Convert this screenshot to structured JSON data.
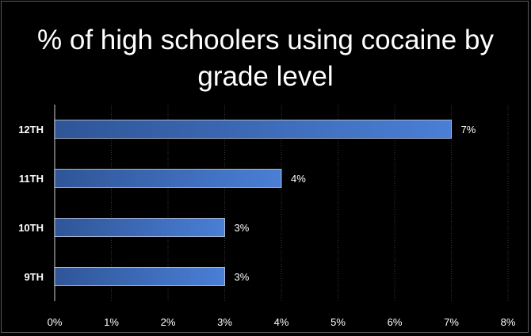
{
  "chart_data": {
    "type": "bar",
    "orientation": "horizontal",
    "title": "% of high schoolers using cocaine by grade level",
    "categories": [
      "12TH",
      "11TH",
      "10TH",
      "9TH"
    ],
    "values": [
      7,
      4,
      3,
      3
    ],
    "data_labels": [
      "7%",
      "4%",
      "3%",
      "3%"
    ],
    "xlabel": "",
    "ylabel": "",
    "xlim": [
      0,
      8
    ],
    "x_ticks": [
      0,
      1,
      2,
      3,
      4,
      5,
      6,
      7,
      8
    ],
    "x_tick_labels": [
      "0%",
      "1%",
      "2%",
      "3%",
      "4%",
      "5%",
      "6%",
      "7%",
      "8%"
    ],
    "grid": true,
    "legend": "none",
    "colors": {
      "background": "#000000",
      "bar_dark": "#2f5597",
      "bar_light": "#4a7fd6",
      "text": "#ffffff",
      "grid": "#3a3a3a",
      "axis": "#8a8a8a"
    }
  }
}
